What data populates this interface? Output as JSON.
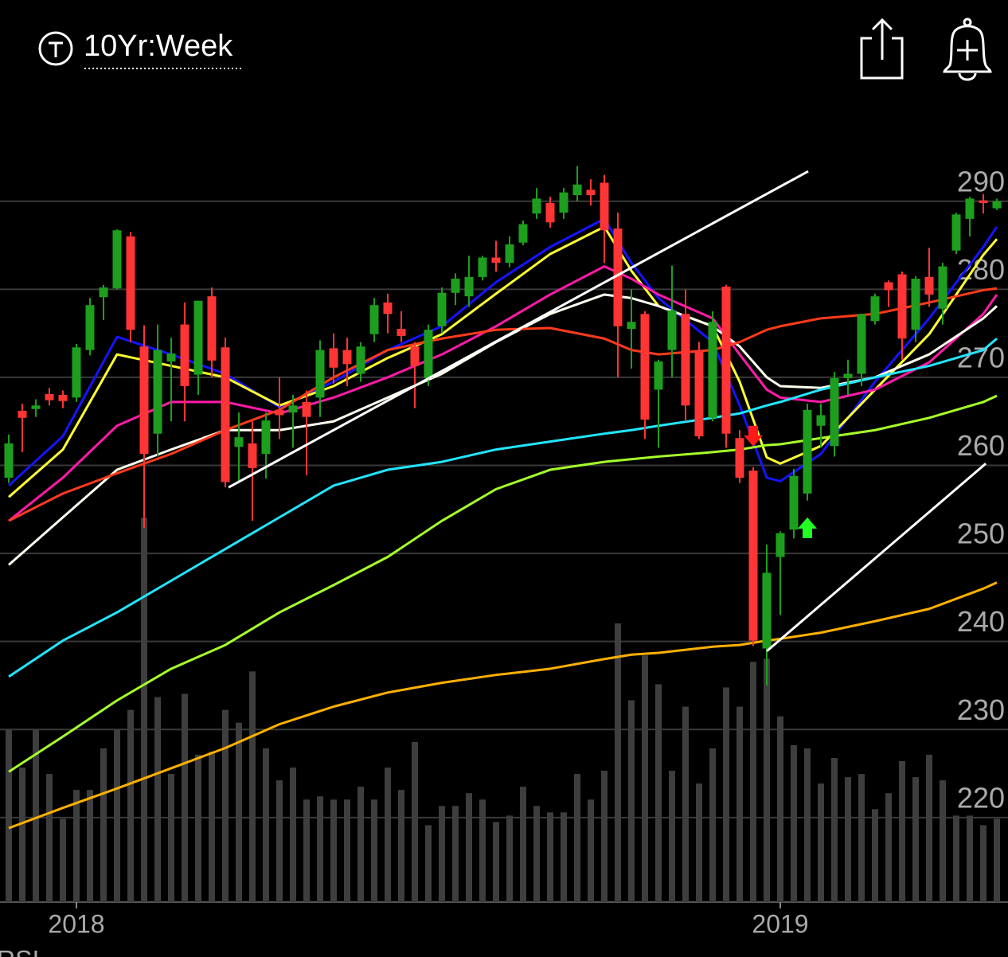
{
  "header": {
    "title": "10Yr:Week"
  },
  "chart_data": {
    "type": "candlestick",
    "categories": [
      null,
      null,
      null,
      null,
      null,
      "2018",
      null,
      null,
      null,
      null,
      null,
      null,
      null,
      null,
      null,
      null,
      null,
      null,
      null,
      null,
      null,
      null,
      null,
      null,
      null,
      null,
      null,
      null,
      null,
      null,
      null,
      null,
      null,
      null,
      null,
      null,
      null,
      null,
      null,
      null,
      null,
      null,
      null,
      null,
      null,
      null,
      null,
      null,
      null,
      null,
      null,
      null,
      null,
      null,
      null,
      null,
      null,
      "2019",
      null,
      null,
      null,
      null,
      null,
      null,
      null,
      null,
      null,
      null,
      null,
      null,
      null,
      null,
      null,
      null
    ],
    "open": [
      258.6,
      266.2,
      266.4,
      268.1,
      268,
      267.7,
      273.1,
      279.1,
      280.1,
      286.0,
      273.5,
      263.6,
      271.8,
      276,
      270.3,
      279.2,
      273.4,
      262.1,
      262.5,
      261.3,
      266.3,
      266,
      267.2,
      267.7,
      273.3,
      273.1,
      270.4,
      274.9,
      278.5,
      275.5,
      273.5,
      269.9,
      275.8,
      279.6,
      279.2,
      281.4,
      283.6,
      283.0,
      285.3,
      288.6,
      289.8,
      288.7,
      290.7,
      291.3,
      292.1,
      286.9,
      275.5,
      277.2,
      268.6,
      273.1,
      277.2,
      273.1,
      265.4,
      280.3,
      263.1,
      259.4,
      239.2,
      249.6,
      252.7,
      256.8,
      264.5,
      262.2,
      269.9,
      270.4,
      276.4,
      280.8,
      281.7,
      275.4,
      281.4,
      277.8,
      284.4,
      288.0,
      290.1,
      289.2
    ],
    "high": [
      263.5,
      267,
      267.5,
      268.8,
      268.5,
      273.8,
      279.0,
      280.5,
      286.8,
      286.5,
      275.9,
      276,
      274.5,
      278.5,
      278.7,
      280.2,
      274.5,
      266,
      265,
      266,
      270,
      268,
      268.5,
      274.2,
      275,
      274.5,
      274,
      279,
      279.5,
      277.5,
      274,
      276,
      280.2,
      281.8,
      283.8,
      283.8,
      285.5,
      286,
      287.8,
      291.5,
      290.5,
      291.5,
      294,
      292.5,
      293,
      288.7,
      280,
      277.5,
      272,
      282.7,
      280,
      274,
      277.5,
      280.5,
      264,
      259.8,
      251,
      252.5,
      259.6,
      267,
      267,
      270.6,
      272,
      277.2,
      279.5,
      281,
      282,
      281.5,
      284.7,
      283,
      288.7,
      290.5,
      290.8,
      290.3
    ],
    "low": [
      258,
      261.5,
      265.5,
      266.8,
      266.5,
      267.2,
      272.5,
      276.5,
      280,
      274,
      252.9,
      261,
      265,
      265,
      268,
      270,
      257.5,
      258,
      253.7,
      258.5,
      263,
      262,
      258.9,
      265.5,
      269.3,
      269,
      269.5,
      274,
      275,
      274,
      266.5,
      269,
      275,
      278.2,
      278,
      281,
      282,
      282.5,
      285,
      288,
      287,
      288,
      290,
      289.5,
      283,
      270,
      271,
      263,
      262,
      270,
      265,
      263,
      265,
      262,
      258,
      239.5,
      235,
      243,
      251.7,
      256,
      262,
      261,
      268,
      269,
      276,
      278,
      272,
      274,
      278,
      276,
      284,
      286,
      288.6,
      289
    ],
    "close": [
      262.5,
      265.4,
      266.8,
      267.4,
      267.3,
      273.4,
      278.2,
      280.2,
      286.7,
      275.4,
      261.3,
      273.1,
      272.7,
      269,
      278.7,
      271.9,
      258.1,
      263.2,
      259.7,
      265.1,
      265.7,
      266.8,
      265.5,
      273.1,
      271.1,
      271.5,
      273.5,
      278.2,
      277.2,
      274.7,
      271.3,
      275.4,
      279.6,
      281.2,
      281.4,
      283.6,
      283.0,
      285.1,
      287.4,
      290.3,
      287.6,
      291.0,
      291.9,
      290.7,
      286.7,
      275.8,
      276.3,
      265.2,
      271.8,
      277.6,
      266.8,
      263.3,
      276.3,
      263.6,
      258.6,
      240.1,
      247.8,
      252.3,
      258.8,
      266.3,
      265.7,
      269.9,
      270.4,
      277.2,
      279.2,
      279.9,
      274.4,
      281.2,
      279.4,
      282.6,
      288.5,
      290.3,
      289.8,
      290.0
    ],
    "up_color": "#1e9e1e",
    "down_color": "#ff3535",
    "volume": [
      54,
      42,
      54,
      40,
      26,
      35,
      35,
      48,
      54,
      60,
      120,
      64,
      40,
      65,
      46,
      47,
      60,
      56,
      72,
      48,
      38,
      42,
      32,
      33,
      32,
      32,
      36,
      32,
      42,
      35,
      50,
      24,
      30,
      30,
      34,
      32,
      25,
      27,
      36,
      30,
      28,
      28,
      40,
      32,
      41,
      87,
      63,
      77,
      68,
      41,
      61,
      37,
      48,
      67,
      61,
      75,
      76,
      58,
      49,
      48,
      37,
      45,
      39,
      40,
      29,
      34,
      44,
      39,
      46,
      38,
      27,
      27,
      24,
      26
    ],
    "volume_lim": [
      0,
      130
    ],
    "volume_color": "#3e3e3e",
    "moving_averages": [
      {
        "color": "#1414ff",
        "x": [
          0,
          4,
          8,
          12,
          16,
          20,
          24,
          28,
          32,
          36,
          40,
          44,
          46,
          48,
          52,
          54,
          56,
          57,
          60,
          64,
          68,
          72,
          73
        ],
        "values": [
          257.7,
          263.3,
          274.6,
          272.6,
          270.4,
          266.6,
          269.5,
          273.1,
          275.8,
          280.8,
          284.8,
          288.0,
          283,
          279,
          274,
          266.8,
          258.6,
          258.2,
          261.3,
          269.5,
          276.7,
          284.8,
          287.1
        ]
      },
      {
        "color": "#ffff33",
        "x": [
          0,
          4,
          8,
          12,
          16,
          20,
          24,
          28,
          32,
          36,
          40,
          44,
          46,
          48,
          52,
          54,
          56,
          57,
          60,
          64,
          68,
          72,
          73
        ],
        "values": [
          256.4,
          261.8,
          272.6,
          271.3,
          270,
          266.8,
          269,
          272.2,
          274.9,
          279.5,
          284,
          287.1,
          282.1,
          278.1,
          275.8,
          269.5,
          260.9,
          260.2,
          262.2,
          268.6,
          274.9,
          283.9,
          285.7
        ]
      },
      {
        "color": "#ff1aa8",
        "x": [
          0,
          4,
          8,
          12,
          16,
          20,
          24,
          28,
          32,
          36,
          40,
          44,
          46,
          48,
          52,
          54,
          56,
          57,
          60,
          64,
          68,
          72,
          73
        ],
        "values": [
          253.7,
          258.6,
          264.5,
          267.2,
          267.2,
          265.9,
          267.7,
          270,
          272.6,
          275.8,
          279.4,
          282.6,
          281.2,
          279.4,
          276.7,
          272.6,
          268.6,
          267.7,
          267.2,
          268.6,
          271.7,
          277.2,
          279.4
        ]
      },
      {
        "color": "#fffff0",
        "x": [
          0,
          4,
          8,
          12,
          16,
          20,
          24,
          28,
          32,
          36,
          40,
          44,
          46,
          48,
          52,
          54,
          56,
          57,
          60,
          64,
          68,
          72,
          73
        ],
        "values": [
          248.7,
          254.1,
          259.5,
          261.8,
          264,
          264,
          265,
          267.7,
          270.4,
          274,
          277.2,
          279.4,
          279,
          278.1,
          275.8,
          273.5,
          270,
          269,
          268.8,
          270,
          272.6,
          276.7,
          278.1
        ]
      },
      {
        "color": "#ff3b1a",
        "x": [
          0,
          4,
          8,
          12,
          16,
          20,
          24,
          28,
          32,
          36,
          40,
          44,
          46,
          48,
          52,
          54,
          56,
          57,
          60,
          64,
          68,
          72,
          73
        ],
        "values": [
          253.7,
          256.8,
          259.1,
          261.3,
          264,
          266.3,
          270,
          273.1,
          274.4,
          275.4,
          275.6,
          274.4,
          273.1,
          272.6,
          273.1,
          274,
          275.4,
          275.8,
          276.7,
          277.2,
          278.5,
          279.9,
          280.1
        ]
      },
      {
        "color": "#22e5ff",
        "x": [
          0,
          4,
          8,
          12,
          16,
          20,
          24,
          28,
          32,
          36,
          40,
          44,
          46,
          48,
          52,
          54,
          56,
          57,
          60,
          64,
          68,
          72,
          73
        ],
        "values": [
          236,
          240.1,
          243.3,
          246.9,
          250.5,
          254.1,
          257.7,
          259.5,
          260.4,
          261.8,
          262.7,
          263.6,
          264,
          264.5,
          265.4,
          265.9,
          266.8,
          267.2,
          268.6,
          270,
          271.3,
          273.1,
          274.4
        ]
      },
      {
        "color": "#a6ff2a",
        "x": [
          0,
          4,
          8,
          12,
          16,
          20,
          24,
          28,
          32,
          36,
          40,
          44,
          46,
          48,
          52,
          54,
          56,
          57,
          60,
          64,
          68,
          72,
          73
        ],
        "values": [
          225.2,
          229.2,
          233.3,
          236.9,
          239.6,
          243.3,
          246.4,
          249.6,
          253.7,
          257.3,
          259.5,
          260.4,
          260.7,
          261,
          261.5,
          261.8,
          262.3,
          262.4,
          263.1,
          264,
          265.4,
          267.2,
          267.9
        ]
      },
      {
        "color": "#ffb000",
        "x": [
          0,
          4,
          8,
          12,
          16,
          20,
          24,
          28,
          32,
          36,
          40,
          44,
          46,
          48,
          52,
          54,
          56,
          57,
          60,
          64,
          68,
          72,
          73
        ],
        "values": [
          218.8,
          221.1,
          223.3,
          225.6,
          227.9,
          230.6,
          232.6,
          234.2,
          235.3,
          236.2,
          236.9,
          238,
          238.5,
          238.7,
          239.4,
          239.6,
          240.1,
          240.3,
          241,
          242.3,
          243.7,
          246,
          246.7
        ]
      }
    ],
    "trend_lines": [
      {
        "color": "#ffffff",
        "x": [
          16.24,
          59.06
        ],
        "y": [
          257.5,
          293.4
        ]
      },
      {
        "color": "#ffffff",
        "x": [
          56,
          72.18
        ],
        "y": [
          238.9,
          260.2
        ]
      }
    ],
    "markers": [
      {
        "x": 55,
        "y": 262.5,
        "direction": "down",
        "color": "#ff1a1a"
      },
      {
        "x": 59,
        "y": 253,
        "direction": "up",
        "color": "#22ff22"
      }
    ],
    "ylim": [
      210.4,
      301.1
    ],
    "yticks": [
      220,
      230,
      240,
      250,
      260,
      270,
      280,
      290
    ],
    "grid": true,
    "lower_panel_label": "RSI"
  }
}
